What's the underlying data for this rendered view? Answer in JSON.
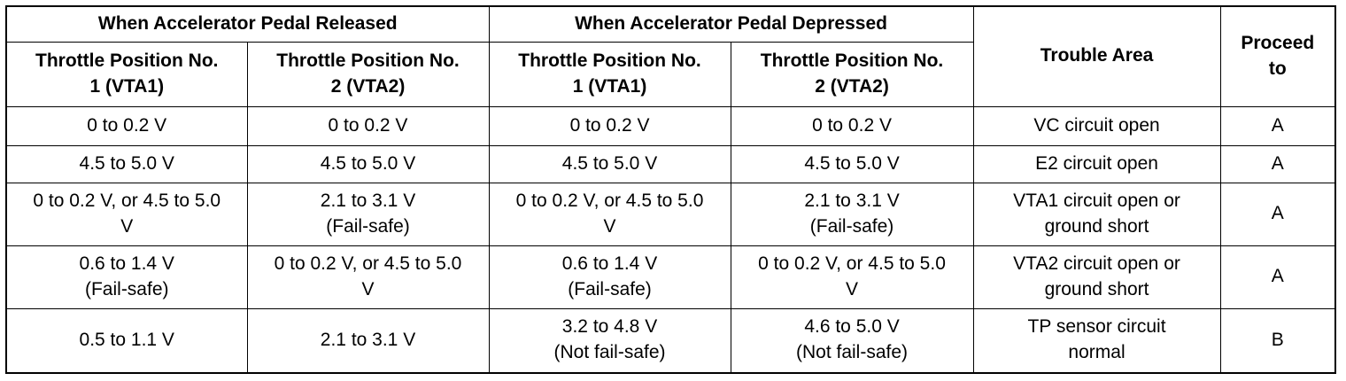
{
  "table": {
    "group_headers": {
      "released": "When Accelerator Pedal Released",
      "depressed": "When Accelerator Pedal Depressed",
      "trouble_area": "Trouble Area",
      "proceed_to": "Proceed\nto"
    },
    "sub_headers": {
      "released_vta1": "Throttle Position No.\n1 (VTA1)",
      "released_vta2": "Throttle Position No.\n2 (VTA2)",
      "depressed_vta1": "Throttle Position No.\n1 (VTA1)",
      "depressed_vta2": "Throttle Position No.\n2 (VTA2)"
    },
    "rows": [
      {
        "released_vta1": "0 to 0.2 V",
        "released_vta2": "0 to 0.2 V",
        "depressed_vta1": "0 to 0.2 V",
        "depressed_vta2": "0 to 0.2 V",
        "trouble_area": "VC circuit open",
        "proceed_to": "A"
      },
      {
        "released_vta1": "4.5 to 5.0 V",
        "released_vta2": "4.5 to 5.0 V",
        "depressed_vta1": "4.5 to 5.0 V",
        "depressed_vta2": "4.5 to 5.0 V",
        "trouble_area": "E2 circuit open",
        "proceed_to": "A"
      },
      {
        "released_vta1": "0 to 0.2 V, or 4.5 to 5.0\nV",
        "released_vta2": "2.1 to 3.1 V\n(Fail-safe)",
        "depressed_vta1": "0 to 0.2 V, or 4.5 to 5.0\nV",
        "depressed_vta2": "2.1 to 3.1 V\n(Fail-safe)",
        "trouble_area": "VTA1 circuit open or\nground short",
        "proceed_to": "A"
      },
      {
        "released_vta1": "0.6 to 1.4 V\n(Fail-safe)",
        "released_vta2": "0 to 0.2 V, or 4.5 to 5.0\nV",
        "depressed_vta1": "0.6 to 1.4 V\n(Fail-safe)",
        "depressed_vta2": "0 to 0.2 V, or 4.5 to 5.0\nV",
        "trouble_area": "VTA2 circuit open or\nground short",
        "proceed_to": "A"
      },
      {
        "released_vta1": "0.5 to 1.1 V",
        "released_vta2": "2.1 to 3.1 V",
        "depressed_vta1": "3.2 to 4.8 V\n(Not fail-safe)",
        "depressed_vta2": "4.6 to 5.0 V\n(Not fail-safe)",
        "trouble_area": "TP sensor circuit\nnormal",
        "proceed_to": "B"
      }
    ]
  }
}
